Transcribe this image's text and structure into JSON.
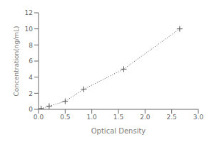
{
  "chart_data": {
    "type": "line",
    "x": [
      0.05,
      0.2,
      0.5,
      0.85,
      1.6,
      2.65
    ],
    "values": [
      0.1,
      0.4,
      1.0,
      2.5,
      5.0,
      10.0
    ],
    "xlabel": "Optical Density",
    "ylabel": "Concentration(ng/mL)",
    "xlim": [
      0,
      3
    ],
    "ylim": [
      0,
      12
    ],
    "xticks": [
      {
        "value": 0,
        "label": "0.0"
      },
      0.5,
      {
        "value": 1,
        "label": "1.0"
      },
      1.5,
      {
        "value": 2,
        "label": "2.0"
      },
      2.5,
      {
        "value": 3,
        "label": "3.0"
      }
    ],
    "yticks": [
      0,
      2,
      4,
      6,
      8,
      10,
      12
    ],
    "color": "#555555",
    "marker": "plus",
    "line_style": "dotted"
  }
}
